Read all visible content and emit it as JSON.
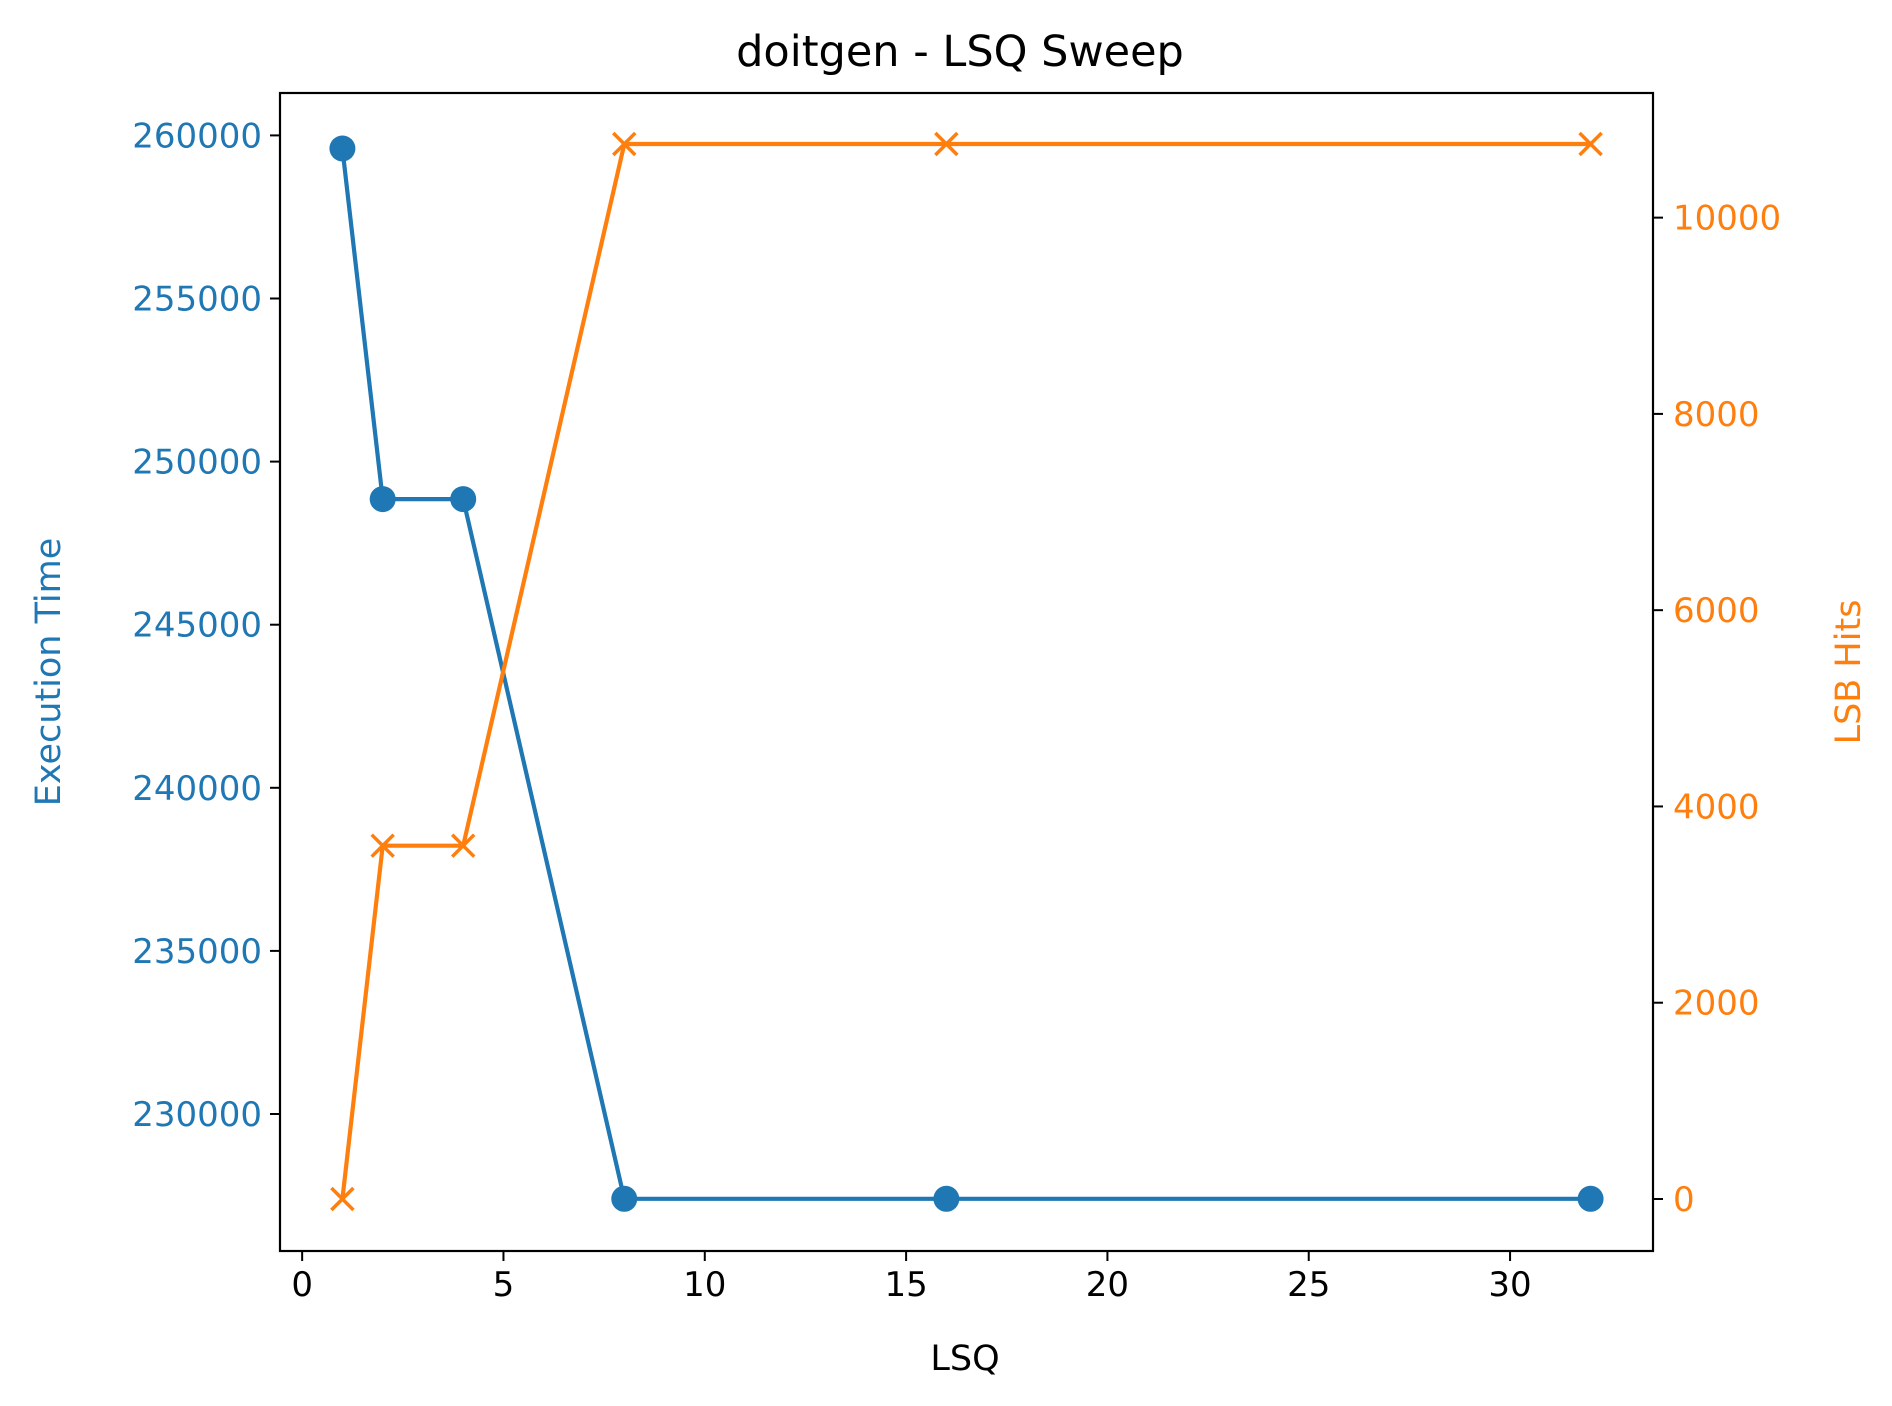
{
  "chart_data": {
    "type": "line",
    "title": "doitgen - LSQ Sweep",
    "xlabel": "LSQ",
    "ylabel_left": "Execution Time",
    "ylabel_right": "LSB Hits",
    "xlim": [
      -0.55,
      33.55
    ],
    "ylim_left": [
      225800,
      261300
    ],
    "ylim_right": [
      -530,
      11270
    ],
    "x_ticks": [
      0,
      5,
      10,
      15,
      20,
      25,
      30
    ],
    "y_ticks_left": [
      230000,
      235000,
      240000,
      245000,
      250000,
      255000,
      260000
    ],
    "y_ticks_right": [
      0,
      2000,
      4000,
      6000,
      8000,
      10000
    ],
    "x": [
      1,
      2,
      4,
      8,
      16,
      32
    ],
    "grid": false,
    "series": [
      {
        "name": "Execution Time",
        "axis": "left",
        "marker": "circle",
        "color": "#1f77b4",
        "values": [
          259600,
          248850,
          248850,
          227400,
          227400,
          227400
        ]
      },
      {
        "name": "LSB Hits",
        "axis": "right",
        "marker": "x",
        "color": "#ff7f0e",
        "values": [
          0,
          3600,
          3600,
          10750,
          10750,
          10750
        ]
      }
    ]
  }
}
